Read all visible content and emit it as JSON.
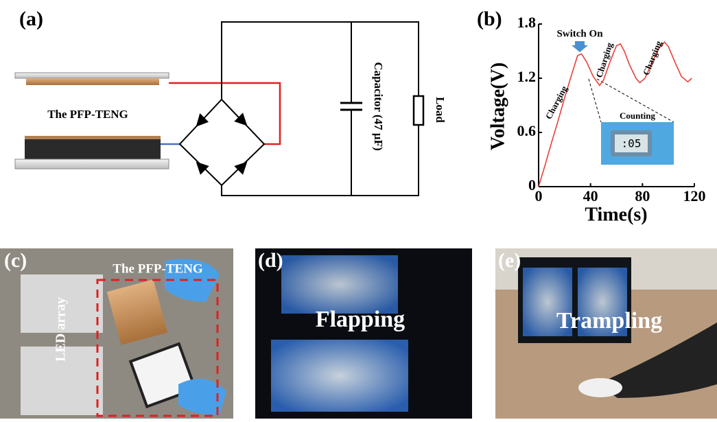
{
  "panel_a": {
    "label": "(a)",
    "device": "The PFP-TENG",
    "capacitor": "Capacitor (47 μF)",
    "load": "Load"
  },
  "chart_data": {
    "type": "line",
    "label": "(b)",
    "xlabel": "Time(s)",
    "ylabel": "Voltage(V)",
    "x": [
      0,
      5,
      10,
      15,
      20,
      25,
      30,
      33,
      37,
      42,
      47,
      50,
      55,
      60,
      63,
      66,
      70,
      75,
      78,
      82,
      87,
      92,
      97,
      100,
      105,
      110,
      115,
      118
    ],
    "values": [
      0,
      0.24,
      0.49,
      0.73,
      0.98,
      1.22,
      1.45,
      1.47,
      1.38,
      1.22,
      1.12,
      1.18,
      1.38,
      1.56,
      1.58,
      1.5,
      1.35,
      1.2,
      1.15,
      1.2,
      1.36,
      1.52,
      1.6,
      1.55,
      1.38,
      1.22,
      1.16,
      1.2
    ],
    "color": "#e8403a",
    "xlim": [
      0,
      120
    ],
    "ylim": [
      0,
      1.8
    ],
    "xticks": [
      0,
      40,
      80,
      120
    ],
    "yticks": [
      0,
      0.6,
      1.2,
      1.8
    ],
    "annotations": [
      "Switch On",
      "Charging",
      "Charging",
      "Charging",
      "Counting"
    ],
    "inset_text": ":05"
  },
  "panel_c": {
    "label": "(c)",
    "device": "The PFP-TENG",
    "array": "LED array"
  },
  "panel_d": {
    "label": "(d)",
    "caption": "Flapping"
  },
  "panel_e": {
    "label": "(e)",
    "caption": "Trampling"
  }
}
